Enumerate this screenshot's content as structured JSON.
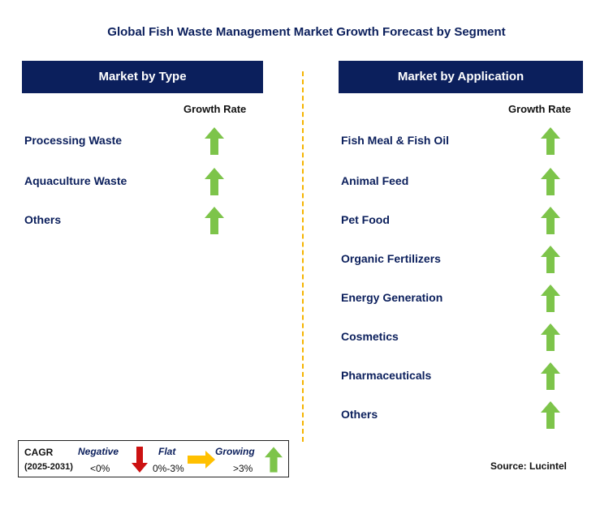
{
  "title": "Global Fish Waste Management Market Growth Forecast by Segment",
  "type_panel": {
    "header": "Market by Type",
    "growth_rate_label": "Growth Rate",
    "segments": [
      {
        "label": "Processing Waste",
        "trend": "growing"
      },
      {
        "label": "Aquaculture Waste",
        "trend": "growing"
      },
      {
        "label": "Others",
        "trend": "growing"
      }
    ]
  },
  "application_panel": {
    "header": "Market by Application",
    "growth_rate_label": "Growth Rate",
    "segments": [
      {
        "label": "Fish Meal & Fish Oil",
        "trend": "growing"
      },
      {
        "label": "Animal Feed",
        "trend": "growing"
      },
      {
        "label": "Pet Food",
        "trend": "growing"
      },
      {
        "label": "Organic Fertilizers",
        "trend": "growing"
      },
      {
        "label": "Energy Generation",
        "trend": "growing"
      },
      {
        "label": "Cosmetics",
        "trend": "growing"
      },
      {
        "label": "Pharmaceuticals",
        "trend": "growing"
      },
      {
        "label": "Others",
        "trend": "growing"
      }
    ]
  },
  "legend": {
    "cagr_label": "CAGR",
    "period": "(2025-2031)",
    "negative_label": "Negative",
    "negative_range": "<0%",
    "flat_label": "Flat",
    "flat_range": "0%-3%",
    "growing_label": "Growing",
    "growing_range": ">3%"
  },
  "colors": {
    "navy": "#0b1f5c",
    "growing_green": "#7dc44a",
    "negative_red": "#cc1111",
    "flat_yellow": "#ffc000",
    "divider_gold": "#f5b400"
  },
  "source": "Source: Lucintel"
}
